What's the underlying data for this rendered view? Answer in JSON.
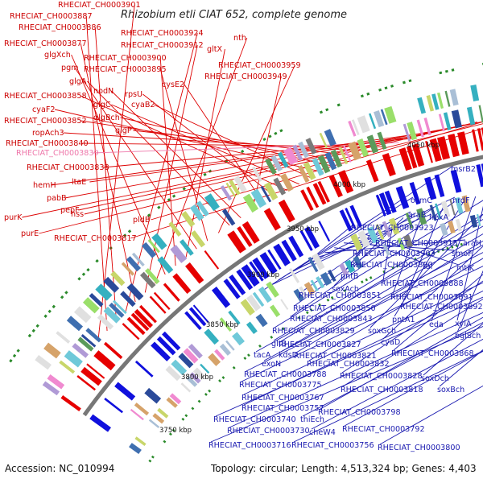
{
  "title": "Rhizobium etli CIAT 652, complete genome",
  "accession": "Accession: NC_010994",
  "topology": "Topology: circular; Length: 4,513,324 bp; Genes: 4,403",
  "ticks": [
    "3750 kbp",
    "3800 kbp",
    "3850 kbp",
    "3900 kbp",
    "3950 kbp",
    "4000 kbp",
    "4050 kbp"
  ],
  "colors": {
    "forward": "#e60000",
    "reverse": "#1010dd",
    "backbone": "#777777",
    "pink": "#ee77aa"
  },
  "labels_left": [
    "RHECIAT_CH0003901",
    "RHECIAT_CH0003887",
    "RHECIAT_CH0003886",
    "RHECIAT_CH0003924",
    "RHECIAT_CH0003877",
    "RHECIAT_CH0003912",
    "nth",
    "glgXch",
    "RHECIAT_CH0003900",
    "gltX",
    "pgm",
    "RHECIAT_CH0003895",
    "RHECIAT_CH0003959",
    "glgA",
    "nodN",
    "RHECIAT_CH0003949",
    "cysE2",
    "rpsU",
    "RHECIAT_CH0003858",
    "glgC",
    "cyaB2",
    "cyaF2",
    "glgBch",
    "RHECIAT_CH0003852",
    "glgP",
    "ropAch3",
    "RHECIAT_CH0003840",
    "RHECIAT_CH0003839",
    "RHECIAT_CH0003838",
    "ltaE",
    "hemH",
    "pabB",
    "pepF",
    "hss",
    "pldB",
    "purK",
    "purE",
    "RHECIAT_CH0003817"
  ],
  "labels_right": [
    "4050 kbp",
    "msrB2",
    "nrdF",
    "osmC",
    "araB",
    "hexA",
    "RHECIAT_CH0003923",
    "RHECIAT_CH0003915",
    "araH",
    "RHECIAT_CH0003903",
    "smoF",
    "tal",
    "mtlK",
    "RHECIAT_CH0003890",
    "pntB",
    "RHECIAT_CH0003888",
    "soxAch",
    "RHECIAT_CH0003851",
    "RHECIAT_CH0003891",
    "RHECIAT_CH0003850",
    "RHECIAT_CH0003892",
    "RHECIAT_CH0003843",
    "pntA1",
    "eda",
    "xylA",
    "RHECIAT_CH0003829",
    "soxGch",
    "bglSch",
    "gltB",
    "RHECIAT_CH0003827",
    "cyaD",
    "tacA",
    "kdsD",
    "RHECIAT_CH0003821",
    "RHECIAT_CH0003868",
    "exoN",
    "RHECIAT_CH0003832",
    "RHECIAT_CH0003788",
    "RHECIAT_CH0003828",
    "soxDch",
    "RHECIAT_CH0003775",
    "RHECIAT_CH0003818",
    "soxBch",
    "RHECIAT_CH0003767",
    "RHECIAT_CH0003757",
    "RHECIAT_CH0003798",
    "RHECIAT_CH0003740",
    "thiEch",
    "RHECIAT_CH0003730",
    "cheW4",
    "RHECIAT_CH0003792",
    "RHECIAT_CH0003716",
    "RHECIAT_CH0003756",
    "RHECIAT_CH0003800"
  ]
}
